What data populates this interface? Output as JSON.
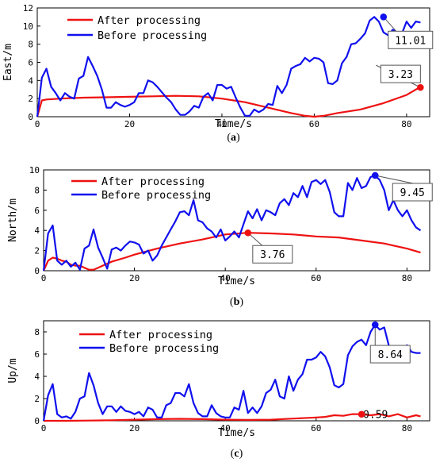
{
  "chart_data": [
    {
      "type": "line",
      "caption": "(a)",
      "xlabel": "Time/s",
      "ylabel": "East/m",
      "xlim": [
        0,
        85
      ],
      "ylim": [
        0,
        12
      ],
      "xticks": [
        "0",
        "20",
        "40",
        "60",
        "80"
      ],
      "yticks": [
        "0",
        "2",
        "4",
        "6",
        "8",
        "10",
        "12"
      ],
      "legend_position": "top-left",
      "series": [
        {
          "name": "After processing",
          "color": "#ee1111",
          "x": [
            0,
            1,
            2,
            5,
            10,
            15,
            20,
            25,
            30,
            35,
            40,
            45,
            50,
            55,
            57,
            58,
            60,
            62,
            65,
            70,
            75,
            80,
            82,
            83
          ],
          "y": [
            0,
            1.8,
            1.9,
            2,
            2.1,
            2.15,
            2.2,
            2.25,
            2.3,
            2.25,
            2,
            1.6,
            1.0,
            0.4,
            0.2,
            0.1,
            0.0,
            0.1,
            0.4,
            0.8,
            1.5,
            2.4,
            3.0,
            3.23
          ]
        },
        {
          "name": "Before processing",
          "color": "#1010ee",
          "x": [
            0,
            1,
            2,
            3,
            4,
            5,
            6,
            7,
            8,
            9,
            10,
            11,
            12,
            13,
            14,
            15,
            16,
            17,
            18,
            19,
            20,
            21,
            22,
            23,
            24,
            25,
            26,
            27,
            28,
            29,
            30,
            31,
            32,
            33,
            34,
            35,
            36,
            37,
            38,
            39,
            40,
            41,
            42,
            43,
            44,
            45,
            46,
            47,
            48,
            49,
            50,
            51,
            52,
            53,
            54,
            55,
            56,
            57,
            58,
            59,
            60,
            61,
            62,
            63,
            64,
            65,
            66,
            67,
            68,
            69,
            70,
            71,
            72,
            73,
            74,
            75,
            76,
            77,
            78,
            79,
            80,
            81,
            82,
            83
          ],
          "y": [
            0,
            4.3,
            5.3,
            3.3,
            2.6,
            1.8,
            2.6,
            2.2,
            2.0,
            4.2,
            4.5,
            6.6,
            5.6,
            4.5,
            3.0,
            1.0,
            1.0,
            1.6,
            1.3,
            1.1,
            1.3,
            1.6,
            2.6,
            2.6,
            4.0,
            3.8,
            3.3,
            2.7,
            2.1,
            1.6,
            0.8,
            0.2,
            0.2,
            0.6,
            1.2,
            1.0,
            2.2,
            2.6,
            1.8,
            3.5,
            3.5,
            3.1,
            3.3,
            2.1,
            1.0,
            0.1,
            0.1,
            0.8,
            0.5,
            0.8,
            1.4,
            1.3,
            3.4,
            2.6,
            3.5,
            5.3,
            5.6,
            5.8,
            6.5,
            6.1,
            6.5,
            6.4,
            6.0,
            3.7,
            3.6,
            4.0,
            5.9,
            6.6,
            8.0,
            8.1,
            8.6,
            9.2,
            10.6,
            11.01,
            10.5,
            9.3,
            9.0,
            9.6,
            9.3,
            9.2,
            10.5,
            9.8,
            10.5,
            10.4
          ]
        }
      ],
      "annotations": [
        {
          "text": "11.01",
          "x": 75,
          "y": 11.01,
          "series": 1
        },
        {
          "text": "3.23",
          "x": 83,
          "y": 3.23,
          "series": 0
        }
      ]
    },
    {
      "type": "line",
      "caption": "(b)",
      "xlabel": "Time/s",
      "ylabel": "North/m",
      "xlim": [
        0,
        85
      ],
      "ylim": [
        0,
        10
      ],
      "xticks": [
        "0",
        "20",
        "40",
        "60",
        "80"
      ],
      "yticks": [
        "0",
        "2",
        "4",
        "6",
        "8",
        "10"
      ],
      "legend_position": "top-left",
      "series": [
        {
          "name": "After processing",
          "color": "#ee1111",
          "x": [
            0,
            1,
            2,
            3,
            4,
            5,
            6,
            7,
            8,
            9,
            10,
            11,
            12,
            13,
            15,
            18,
            20,
            25,
            30,
            35,
            40,
            45,
            50,
            55,
            60,
            65,
            70,
            75,
            80,
            83
          ],
          "y": [
            0,
            1.0,
            1.3,
            1.2,
            1.0,
            0.9,
            0.6,
            0.5,
            0.5,
            0.3,
            0.1,
            0.1,
            0.3,
            0.5,
            0.9,
            1.3,
            1.6,
            2.2,
            2.7,
            3.1,
            3.6,
            3.76,
            3.7,
            3.6,
            3.4,
            3.3,
            3.0,
            2.7,
            2.2,
            1.8
          ]
        },
        {
          "name": "Before processing",
          "color": "#1010ee",
          "x": [
            0,
            1,
            2,
            3,
            4,
            5,
            6,
            7,
            8,
            9,
            10,
            11,
            12,
            13,
            14,
            15,
            16,
            17,
            18,
            19,
            20,
            21,
            22,
            23,
            24,
            25,
            26,
            27,
            28,
            29,
            30,
            31,
            32,
            33,
            34,
            35,
            36,
            37,
            38,
            39,
            40,
            41,
            42,
            43,
            44,
            45,
            46,
            47,
            48,
            49,
            50,
            51,
            52,
            53,
            54,
            55,
            56,
            57,
            58,
            59,
            60,
            61,
            62,
            63,
            64,
            65,
            66,
            67,
            68,
            69,
            70,
            71,
            72,
            73,
            74,
            75,
            76,
            77,
            78,
            79,
            80,
            81,
            82,
            83
          ],
          "y": [
            0,
            3.7,
            4.5,
            1.0,
            0.6,
            1.0,
            0.4,
            0.8,
            0.1,
            2.2,
            2.5,
            4.1,
            2.3,
            1.3,
            0.2,
            2.1,
            2.3,
            2.0,
            2.5,
            2.9,
            2.8,
            2.6,
            1.7,
            2.0,
            1.0,
            1.5,
            2.5,
            3.3,
            4.1,
            4.9,
            5.8,
            5.9,
            5.5,
            7.0,
            5.0,
            4.8,
            4.2,
            3.9,
            3.3,
            4.1,
            3.0,
            3.4,
            3.9,
            3.3,
            4.6,
            5.9,
            5.2,
            6.1,
            5.0,
            6.0,
            5.8,
            5.5,
            6.7,
            7.1,
            6.5,
            7.7,
            7.3,
            8.4,
            7.3,
            8.8,
            9.0,
            8.6,
            9.0,
            7.8,
            5.8,
            5.4,
            5.4,
            8.7,
            8.0,
            9.2,
            8.2,
            8.4,
            9.3,
            9.45,
            9.0,
            8.0,
            6.0,
            7.0,
            6.0,
            5.4,
            6.0,
            5.0,
            4.3,
            4.0
          ]
        }
      ],
      "annotations": [
        {
          "text": "9.45",
          "x": 73,
          "y": 9.45,
          "series": 1
        },
        {
          "text": "3.76",
          "x": 45,
          "y": 3.76,
          "series": 0
        }
      ]
    },
    {
      "type": "line",
      "caption": "(c)",
      "xlabel": "Time/s",
      "ylabel": "Up/m",
      "xlim": [
        0,
        85
      ],
      "ylim": [
        0,
        9
      ],
      "xticks": [
        "0",
        "20",
        "40",
        "60",
        "80"
      ],
      "yticks": [
        "0",
        "2",
        "4",
        "6",
        "8"
      ],
      "legend_position": "top-left",
      "series": [
        {
          "name": "After processing",
          "color": "#ee1111",
          "x": [
            0,
            5,
            10,
            15,
            20,
            25,
            30,
            35,
            40,
            45,
            50,
            55,
            60,
            62,
            64,
            66,
            68,
            70,
            72,
            74,
            76,
            78,
            80,
            82,
            83
          ],
          "y": [
            0,
            0,
            0.02,
            0.05,
            0.1,
            0.15,
            0.18,
            0.15,
            0.1,
            0.08,
            0.1,
            0.2,
            0.3,
            0.35,
            0.5,
            0.45,
            0.6,
            0.59,
            0.5,
            0.6,
            0.4,
            0.6,
            0.3,
            0.5,
            0.4
          ]
        },
        {
          "name": "Before processing",
          "color": "#1010ee",
          "x": [
            0,
            1,
            2,
            3,
            4,
            5,
            6,
            7,
            8,
            9,
            10,
            11,
            12,
            13,
            14,
            15,
            16,
            17,
            18,
            19,
            20,
            21,
            22,
            23,
            24,
            25,
            26,
            27,
            28,
            29,
            30,
            31,
            32,
            33,
            34,
            35,
            36,
            37,
            38,
            39,
            40,
            41,
            42,
            43,
            44,
            45,
            46,
            47,
            48,
            49,
            50,
            51,
            52,
            53,
            54,
            55,
            56,
            57,
            58,
            59,
            60,
            61,
            62,
            63,
            64,
            65,
            66,
            67,
            68,
            69,
            70,
            71,
            72,
            73,
            74,
            75,
            76,
            77,
            78,
            79,
            80,
            81,
            82,
            83
          ],
          "y": [
            0,
            2.3,
            3.3,
            0.6,
            0.3,
            0.4,
            0.2,
            0.8,
            2.0,
            2.2,
            4.3,
            3.2,
            1.6,
            0.6,
            1.3,
            1.3,
            0.8,
            1.3,
            0.9,
            0.8,
            0.6,
            0.8,
            0.4,
            1.2,
            1.0,
            0.3,
            0.3,
            1.4,
            1.6,
            2.5,
            2.5,
            2.2,
            3.3,
            1.6,
            0.7,
            0.4,
            0.4,
            1.4,
            0.7,
            0.4,
            0.3,
            0.3,
            1.2,
            1.0,
            2.7,
            0.7,
            1.2,
            0.7,
            1.3,
            2.5,
            2.8,
            3.7,
            2.2,
            2.0,
            4.0,
            2.7,
            3.7,
            4.2,
            5.5,
            5.5,
            5.7,
            6.2,
            5.8,
            4.8,
            3.2,
            3.0,
            3.3,
            5.9,
            6.7,
            7.1,
            7.3,
            6.8,
            8.0,
            8.64,
            8.2,
            8.4,
            6.8,
            6.0,
            5.8,
            5.8,
            6.8,
            6.2,
            6.1,
            6.1
          ]
        }
      ],
      "annotations": [
        {
          "text": "8.64",
          "x": 73,
          "y": 8.64,
          "series": 1
        },
        {
          "text": "0.59",
          "x": 70,
          "y": 0.59,
          "series": 0
        }
      ]
    }
  ]
}
